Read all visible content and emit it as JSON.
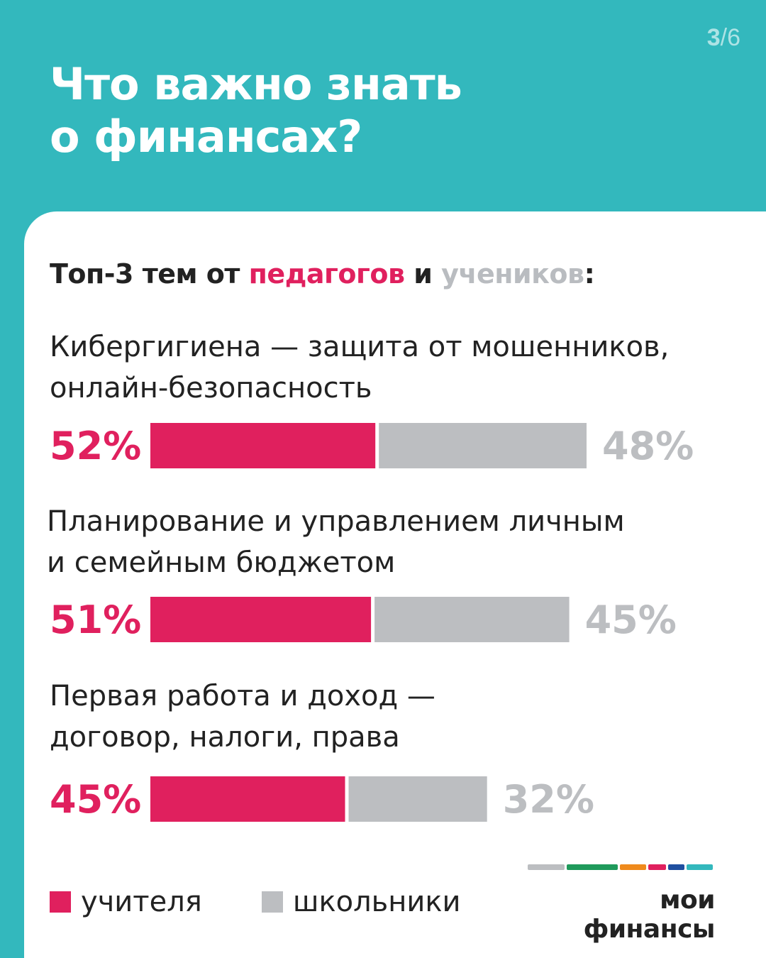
{
  "header": {
    "page_current": "3",
    "page_total": "/6",
    "title_line1": "Что важно знать",
    "title_line2": "о финансах?"
  },
  "chart_data": {
    "type": "bar",
    "title_part1": "Топ-3 тем от ",
    "title_highlight1": "педагогов",
    "title_part2": " и ",
    "title_highlight2": "учеников",
    "title_part3": ":",
    "categories": [
      [
        "Кибергигиена — защита от мошенников,",
        "онлайн-безопасность"
      ],
      [
        "Планирование и управлением личным",
        "и семейным бюджетом"
      ],
      [
        "Первая работа и доход —",
        "договор, налоги, права"
      ]
    ],
    "series": [
      {
        "name": "учителя",
        "color": "#e0205e",
        "values": [
          52,
          51,
          45
        ]
      },
      {
        "name": "школьники",
        "color": "#bcbec1",
        "values": [
          48,
          45,
          32
        ]
      }
    ],
    "value_labels": {
      "teachers": [
        "52%",
        "51%",
        "45%"
      ],
      "students": [
        "48%",
        "45%",
        "32%"
      ]
    },
    "stacked": true,
    "legend_position": "bottom-left",
    "grid": false
  },
  "legend": {
    "teachers_label": "учителя",
    "students_label": "школьники"
  },
  "brand": {
    "name": "мои финансы",
    "stripe_colors": [
      "#bcbec1",
      "#1f9a5b",
      "#ef8a1c",
      "#e0205e",
      "#1f4fa0",
      "#33b8bd"
    ]
  },
  "colors": {
    "background": "#33b8bd",
    "teachers": "#e0205e",
    "students": "#bcbec1",
    "text": "#222222"
  }
}
